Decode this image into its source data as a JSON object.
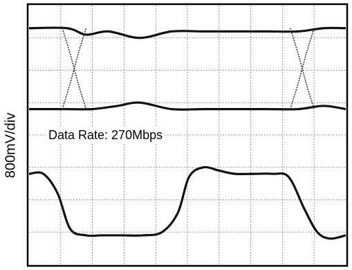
{
  "chart_data": {
    "type": "line",
    "title": "",
    "ylabel": "800mV/div",
    "annotation": "Data Rate: 270Mbps",
    "grid": true,
    "grid_divisions": {
      "x": 10,
      "y": 8
    },
    "x_range_divisions": [
      0,
      10
    ],
    "y_range_divisions": [
      -4,
      4
    ],
    "series": [
      {
        "label_role": "eye diagram high rail",
        "x": [
          0,
          1.2,
          1.8,
          2.5,
          3.5,
          4.5,
          5.5,
          6.5,
          7.5,
          8.5,
          9.3,
          10
        ],
        "y": [
          3.3,
          3.3,
          3.1,
          3.2,
          3.0,
          3.2,
          3.2,
          3.2,
          3.2,
          3.2,
          3.3,
          3.3
        ]
      },
      {
        "label_role": "eye diagram low rail",
        "x": [
          0,
          1.2,
          2.0,
          2.8,
          3.5,
          4.5,
          5.5,
          6.5,
          7.5,
          8.5,
          9.3,
          10
        ],
        "y": [
          0.8,
          0.8,
          0.8,
          0.9,
          1.0,
          0.8,
          0.8,
          0.8,
          0.8,
          0.8,
          0.9,
          0.8
        ]
      },
      {
        "label_role": "eye crossing 1 rising",
        "x": [
          1.05,
          1.3,
          1.55,
          1.8
        ],
        "y": [
          0.8,
          1.6,
          2.5,
          3.3
        ]
      },
      {
        "label_role": "eye crossing 1 falling",
        "x": [
          1.05,
          1.3,
          1.55,
          1.8
        ],
        "y": [
          3.3,
          2.5,
          1.6,
          0.8
        ]
      },
      {
        "label_role": "eye crossing 2 rising",
        "x": [
          8.25,
          8.5,
          8.75,
          9.0
        ],
        "y": [
          0.8,
          1.6,
          2.5,
          3.3
        ]
      },
      {
        "label_role": "eye crossing 2 falling",
        "x": [
          8.25,
          8.5,
          8.75,
          9.0
        ],
        "y": [
          3.3,
          2.5,
          1.6,
          0.8
        ]
      },
      {
        "label_role": "waveform",
        "x": [
          0,
          0.45,
          0.9,
          1.3,
          1.8,
          2.3,
          2.9,
          3.6,
          4.2,
          4.7,
          5.05,
          5.5,
          6.0,
          6.5,
          7.1,
          7.7,
          8.2,
          8.7,
          9.1,
          9.5,
          10
        ],
        "y": [
          -1.2,
          -1.2,
          -1.8,
          -2.9,
          -3.1,
          -3.1,
          -3.1,
          -3.1,
          -3.0,
          -2.4,
          -1.3,
          -1.0,
          -1.1,
          -1.2,
          -1.2,
          -1.2,
          -1.3,
          -2.3,
          -3.0,
          -3.2,
          -3.1
        ]
      }
    ]
  }
}
